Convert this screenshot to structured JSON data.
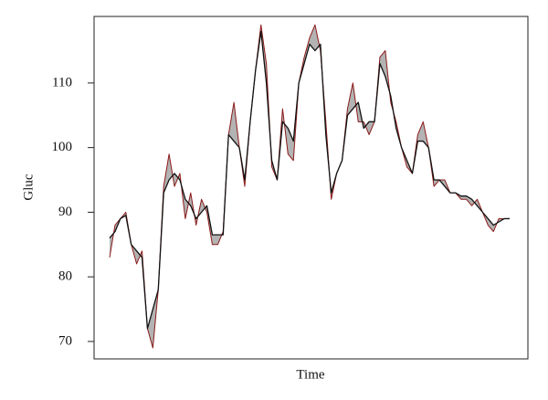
{
  "chart_data": {
    "type": "line",
    "xlabel": "Time",
    "ylabel": "Gluc",
    "ylim": [
      67.3,
      120.3
    ],
    "yticks": [
      70,
      80,
      90,
      100,
      110
    ],
    "band_color": "#b3b3b3",
    "series": [
      {
        "color": "#8b1a1a",
        "values": [
          83,
          88,
          89,
          90,
          85,
          82,
          84,
          72,
          69,
          78,
          94,
          99,
          94,
          96,
          89,
          93,
          88,
          92,
          90,
          85,
          85,
          87,
          102,
          107,
          100,
          94,
          104,
          112,
          119,
          113,
          97,
          95,
          106,
          99,
          98,
          110,
          114,
          117,
          119,
          115,
          104,
          92,
          96,
          98,
          106,
          110,
          104,
          104,
          102,
          104,
          114,
          115,
          107,
          104,
          100,
          97,
          96,
          102,
          104,
          100,
          94,
          95,
          95,
          93,
          93,
          92,
          92,
          91,
          92,
          90,
          88,
          87,
          89,
          89,
          89
        ]
      },
      {
        "color": "#111111",
        "values": [
          86,
          87,
          89,
          89.5,
          85,
          84,
          83,
          72,
          75,
          78,
          93,
          95,
          96,
          95,
          92,
          91,
          89,
          90,
          91,
          86.5,
          86.5,
          86.5,
          102,
          101,
          100,
          95,
          104,
          112,
          118,
          110,
          98,
          95,
          104,
          103,
          101,
          110,
          113,
          116,
          115,
          116,
          102,
          93,
          96,
          98,
          105,
          106,
          107,
          103,
          104,
          104,
          113,
          111,
          108,
          103,
          100,
          98,
          96,
          101,
          101,
          100,
          95,
          95,
          94,
          93,
          93,
          92.5,
          92.5,
          92,
          91,
          90,
          89,
          88,
          88.5,
          89,
          89
        ]
      }
    ]
  }
}
